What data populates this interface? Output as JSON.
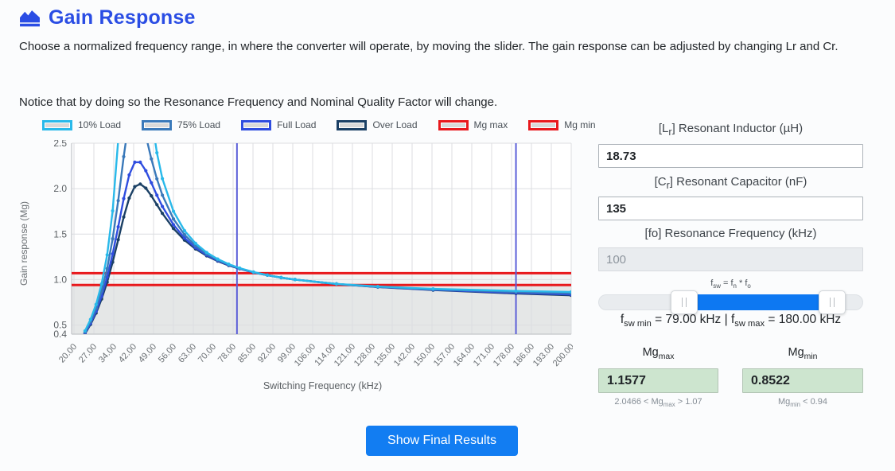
{
  "header": {
    "title": "Gain Response"
  },
  "description": {
    "line1": "Choose a normalized frequency range, in where the converter will operate, by moving the slider. The gain response can be adjusted by changing Lr and Cr.",
    "line2": "Notice that by doing so the Resonance Frequency and Nominal Quality Factor will change."
  },
  "colors": {
    "title_blue": "#2a4de4",
    "button_blue": "#127df2",
    "slider_blue": "#0d78f2",
    "load10": "#29b9ea",
    "load75": "#3a79ba",
    "load_full": "#2f4ddf",
    "load_over": "#1b4065",
    "limit_red": "#e8191d",
    "range_line": "#5c5fd8",
    "result_green_bg": "#cde5cf"
  },
  "chart_data": {
    "type": "line",
    "xlabel": "Switching Frequency (kHz)",
    "ylabel": "Gain response (Mg)",
    "xlim": [
      20,
      200
    ],
    "ylim": [
      0.4,
      2.5
    ],
    "grid": true,
    "legend_position": "top",
    "x_tick_labels": [
      "20.00",
      "27.00",
      "34.00",
      "42.00",
      "49.00",
      "56.00",
      "63.00",
      "70.00",
      "78.00",
      "85.00",
      "92.00",
      "99.00",
      "106.00",
      "114.00",
      "121.00",
      "128.00",
      "135.00",
      "142.00",
      "150.00",
      "157.00",
      "164.00",
      "171.00",
      "178.00",
      "186.00",
      "193.00",
      "200.00"
    ],
    "x_tick_values": [
      20,
      27.2,
      34.4,
      41.6,
      48.8,
      56,
      63.2,
      70.4,
      77.6,
      84.8,
      92,
      99.2,
      106.4,
      113.6,
      120.8,
      128,
      135.2,
      142.4,
      149.6,
      156.8,
      164,
      171.2,
      178.4,
      185.6,
      192.8,
      200
    ],
    "y_tick_labels": [
      "2.5",
      "2.0",
      "1.5",
      "1.0",
      "0.5",
      "0.4"
    ],
    "y_tick_values": [
      2.5,
      2.0,
      1.5,
      1.0,
      0.5,
      0.4
    ],
    "x": [
      24,
      26,
      28,
      30,
      32,
      34,
      36,
      38,
      40,
      42,
      44,
      46,
      48,
      50,
      52,
      56,
      60,
      64,
      68,
      72,
      76,
      80,
      85,
      90,
      95,
      100,
      115,
      130,
      150,
      180,
      200
    ],
    "series": [
      {
        "name": "Over Load",
        "color": "#1b4065",
        "values": [
          0.404,
          0.507,
          0.632,
          0.786,
          0.972,
          1.192,
          1.439,
          1.688,
          1.896,
          2.022,
          2.051,
          2.006,
          1.922,
          1.824,
          1.728,
          1.562,
          1.434,
          1.337,
          1.262,
          1.203,
          1.156,
          1.118,
          1.079,
          1.048,
          1.022,
          1.0,
          0.951,
          0.918,
          0.885,
          0.847,
          0.827
        ]
      },
      {
        "name": "Full Load",
        "color": "#2f4ddf",
        "values": [
          0.411,
          0.52,
          0.652,
          0.819,
          1.027,
          1.282,
          1.58,
          1.891,
          2.152,
          2.291,
          2.291,
          2.197,
          2.065,
          1.928,
          1.804,
          1.604,
          1.458,
          1.351,
          1.271,
          1.209,
          1.16,
          1.12,
          1.08,
          1.048,
          1.021,
          1.0,
          0.952,
          0.919,
          0.888,
          0.854,
          0.836
        ]
      },
      {
        "name": "75% Load",
        "color": "#3a79ba",
        "values": [
          0.422,
          0.538,
          0.684,
          0.873,
          1.122,
          1.449,
          1.868,
          2.352,
          2.774,
          2.942,
          2.83,
          2.584,
          2.328,
          2.108,
          1.929,
          1.668,
          1.494,
          1.372,
          1.283,
          1.217,
          1.164,
          1.123,
          1.081,
          1.049,
          1.021,
          1.0,
          0.952,
          0.921,
          0.893,
          0.864,
          0.849
        ]
      },
      {
        "name": "10% Load",
        "color": "#29b9ea",
        "values": [
          0.436,
          0.562,
          0.727,
          0.952,
          1.272,
          1.756,
          2.538,
          3.873,
          5.706,
          5.872,
          4.5,
          3.455,
          2.81,
          2.395,
          2.111,
          1.752,
          1.538,
          1.398,
          1.299,
          1.226,
          1.17,
          1.126,
          1.083,
          1.049,
          1.022,
          1.0,
          0.953,
          0.924,
          0.898,
          0.875,
          0.865
        ]
      }
    ],
    "hlines": [
      {
        "name": "Mg max",
        "y": 1.07,
        "color": "#e8191d"
      },
      {
        "name": "Mg min",
        "y": 0.94,
        "color": "#e8191d"
      }
    ],
    "vlines": [
      {
        "name": "fsw min",
        "x": 79,
        "color": "#5c5fd8"
      },
      {
        "name": "fsw max",
        "x": 180,
        "color": "#5c5fd8"
      }
    ],
    "legend_items": [
      {
        "label": "10% Load",
        "color": "#29b9ea"
      },
      {
        "label": "75% Load",
        "color": "#3a79ba"
      },
      {
        "label": "Full Load",
        "color": "#2f4ddf"
      },
      {
        "label": "Over Load",
        "color": "#1b4065"
      },
      {
        "label": "Mg max",
        "color": "#e8191d"
      },
      {
        "label": "Mg min",
        "color": "#e8191d"
      }
    ]
  },
  "panel": {
    "lr_label": [
      {
        "t": "[L"
      },
      {
        "sub": "r"
      },
      {
        "t": "] Resonant Inductor (µH)"
      }
    ],
    "lr_value": "18.73",
    "cr_label": [
      {
        "t": "[C"
      },
      {
        "sub": "r"
      },
      {
        "t": "] Resonant Capacitor (nF)"
      }
    ],
    "cr_value": "135",
    "fo_label": [
      {
        "t": "[fo] Resonance Frequency (kHz)"
      }
    ],
    "fo_value": "100",
    "formula": [
      {
        "t": "f"
      },
      {
        "sub": "sw"
      },
      {
        "t": " = f"
      },
      {
        "sub": "n"
      },
      {
        "t": " * f"
      },
      {
        "sub": "o"
      }
    ],
    "slider": {
      "start_pct": 32.4,
      "end_pct": 88.5
    },
    "fsw_line": [
      {
        "t": "f"
      },
      {
        "sub": "sw min"
      },
      {
        "t": " = 79.00 kHz | f"
      },
      {
        "sub": "sw max"
      },
      {
        "t": " = 180.00 kHz"
      }
    ],
    "mgmax": {
      "label": [
        {
          "t": "Mg"
        },
        {
          "sub": "max"
        }
      ],
      "value": "1.1577",
      "caption": [
        {
          "t": "2.0466 < Mg"
        },
        {
          "sub": "max"
        },
        {
          "t": " > 1.07"
        }
      ]
    },
    "mgmin": {
      "label": [
        {
          "t": "Mg"
        },
        {
          "sub": "min"
        }
      ],
      "value": "0.8522",
      "caption": [
        {
          "t": "Mg"
        },
        {
          "sub": "min"
        },
        {
          "t": " < 0.94"
        }
      ]
    }
  },
  "footer": {
    "show_results_label": "Show Final Results"
  }
}
